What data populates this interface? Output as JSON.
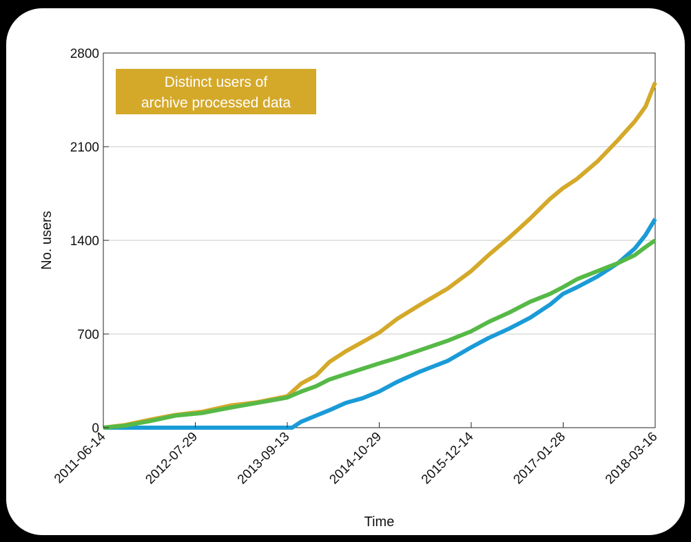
{
  "chart_data": {
    "type": "line",
    "title": "",
    "xlabel": "Time",
    "ylabel": "No. users",
    "ylim": [
      0,
      2800
    ],
    "yticks": [
      "0",
      "700",
      "1400",
      "2100",
      "2800"
    ],
    "xticks": [
      "2011-06-14",
      "2012-07-29",
      "2013-09-13",
      "2014-10-29",
      "2015-12-14",
      "2017-01-28",
      "2018-03-16"
    ],
    "x_range": [
      "2011-06-14",
      "2018-03-16"
    ],
    "grid": "horizontal",
    "annotation": {
      "lines": [
        "Distinct users of",
        "archive processed data"
      ],
      "color": "#D4A92A"
    },
    "series": [
      {
        "color": "#D4A92A",
        "points": [
          [
            "2011-06-14",
            0
          ],
          [
            "2011-09-20",
            20
          ],
          [
            "2012-01-10",
            60
          ],
          [
            "2012-05-01",
            95
          ],
          [
            "2012-09-01",
            120
          ],
          [
            "2013-01-01",
            165
          ],
          [
            "2013-05-01",
            190
          ],
          [
            "2013-09-13",
            235
          ],
          [
            "2013-11-15",
            330
          ],
          [
            "2014-01-20",
            390
          ],
          [
            "2014-03-20",
            490
          ],
          [
            "2014-06-01",
            570
          ],
          [
            "2014-08-15",
            640
          ],
          [
            "2014-10-29",
            710
          ],
          [
            "2015-01-15",
            810
          ],
          [
            "2015-05-01",
            920
          ],
          [
            "2015-09-01",
            1040
          ],
          [
            "2015-12-14",
            1170
          ],
          [
            "2016-03-01",
            1290
          ],
          [
            "2016-06-01",
            1420
          ],
          [
            "2016-09-01",
            1560
          ],
          [
            "2016-12-01",
            1710
          ],
          [
            "2017-01-28",
            1790
          ],
          [
            "2017-04-01",
            1860
          ],
          [
            "2017-07-01",
            1990
          ],
          [
            "2017-10-01",
            2150
          ],
          [
            "2017-12-15",
            2290
          ],
          [
            "2018-02-01",
            2400
          ],
          [
            "2018-03-16",
            2580
          ]
        ]
      },
      {
        "color": "#1A9BD7",
        "points": [
          [
            "2011-06-14",
            0
          ],
          [
            "2012-06-01",
            0
          ],
          [
            "2013-06-01",
            0
          ],
          [
            "2013-10-05",
            0
          ],
          [
            "2013-11-15",
            45
          ],
          [
            "2014-01-20",
            90
          ],
          [
            "2014-03-20",
            130
          ],
          [
            "2014-06-01",
            185
          ],
          [
            "2014-08-15",
            220
          ],
          [
            "2014-10-29",
            270
          ],
          [
            "2015-01-15",
            340
          ],
          [
            "2015-05-01",
            420
          ],
          [
            "2015-09-01",
            500
          ],
          [
            "2015-12-14",
            600
          ],
          [
            "2016-03-01",
            670
          ],
          [
            "2016-06-01",
            740
          ],
          [
            "2016-09-01",
            820
          ],
          [
            "2016-12-01",
            920
          ],
          [
            "2017-01-28",
            1000
          ],
          [
            "2017-04-01",
            1050
          ],
          [
            "2017-07-01",
            1130
          ],
          [
            "2017-10-01",
            1230
          ],
          [
            "2017-12-15",
            1340
          ],
          [
            "2018-02-01",
            1440
          ],
          [
            "2018-03-16",
            1560
          ]
        ]
      },
      {
        "color": "#56B947",
        "points": [
          [
            "2011-06-14",
            0
          ],
          [
            "2011-09-20",
            15
          ],
          [
            "2012-01-10",
            50
          ],
          [
            "2012-05-01",
            90
          ],
          [
            "2012-09-01",
            110
          ],
          [
            "2013-01-01",
            150
          ],
          [
            "2013-05-01",
            185
          ],
          [
            "2013-09-13",
            225
          ],
          [
            "2013-11-15",
            270
          ],
          [
            "2014-01-20",
            310
          ],
          [
            "2014-03-20",
            360
          ],
          [
            "2014-06-01",
            400
          ],
          [
            "2014-08-15",
            440
          ],
          [
            "2014-10-29",
            480
          ],
          [
            "2015-01-15",
            520
          ],
          [
            "2015-05-01",
            580
          ],
          [
            "2015-09-01",
            650
          ],
          [
            "2015-12-14",
            720
          ],
          [
            "2016-03-01",
            790
          ],
          [
            "2016-06-01",
            860
          ],
          [
            "2016-09-01",
            940
          ],
          [
            "2016-12-01",
            1000
          ],
          [
            "2017-01-28",
            1050
          ],
          [
            "2017-04-01",
            1110
          ],
          [
            "2017-07-01",
            1170
          ],
          [
            "2017-10-01",
            1230
          ],
          [
            "2017-12-15",
            1290
          ],
          [
            "2018-02-01",
            1350
          ],
          [
            "2018-03-16",
            1400
          ]
        ]
      }
    ]
  }
}
